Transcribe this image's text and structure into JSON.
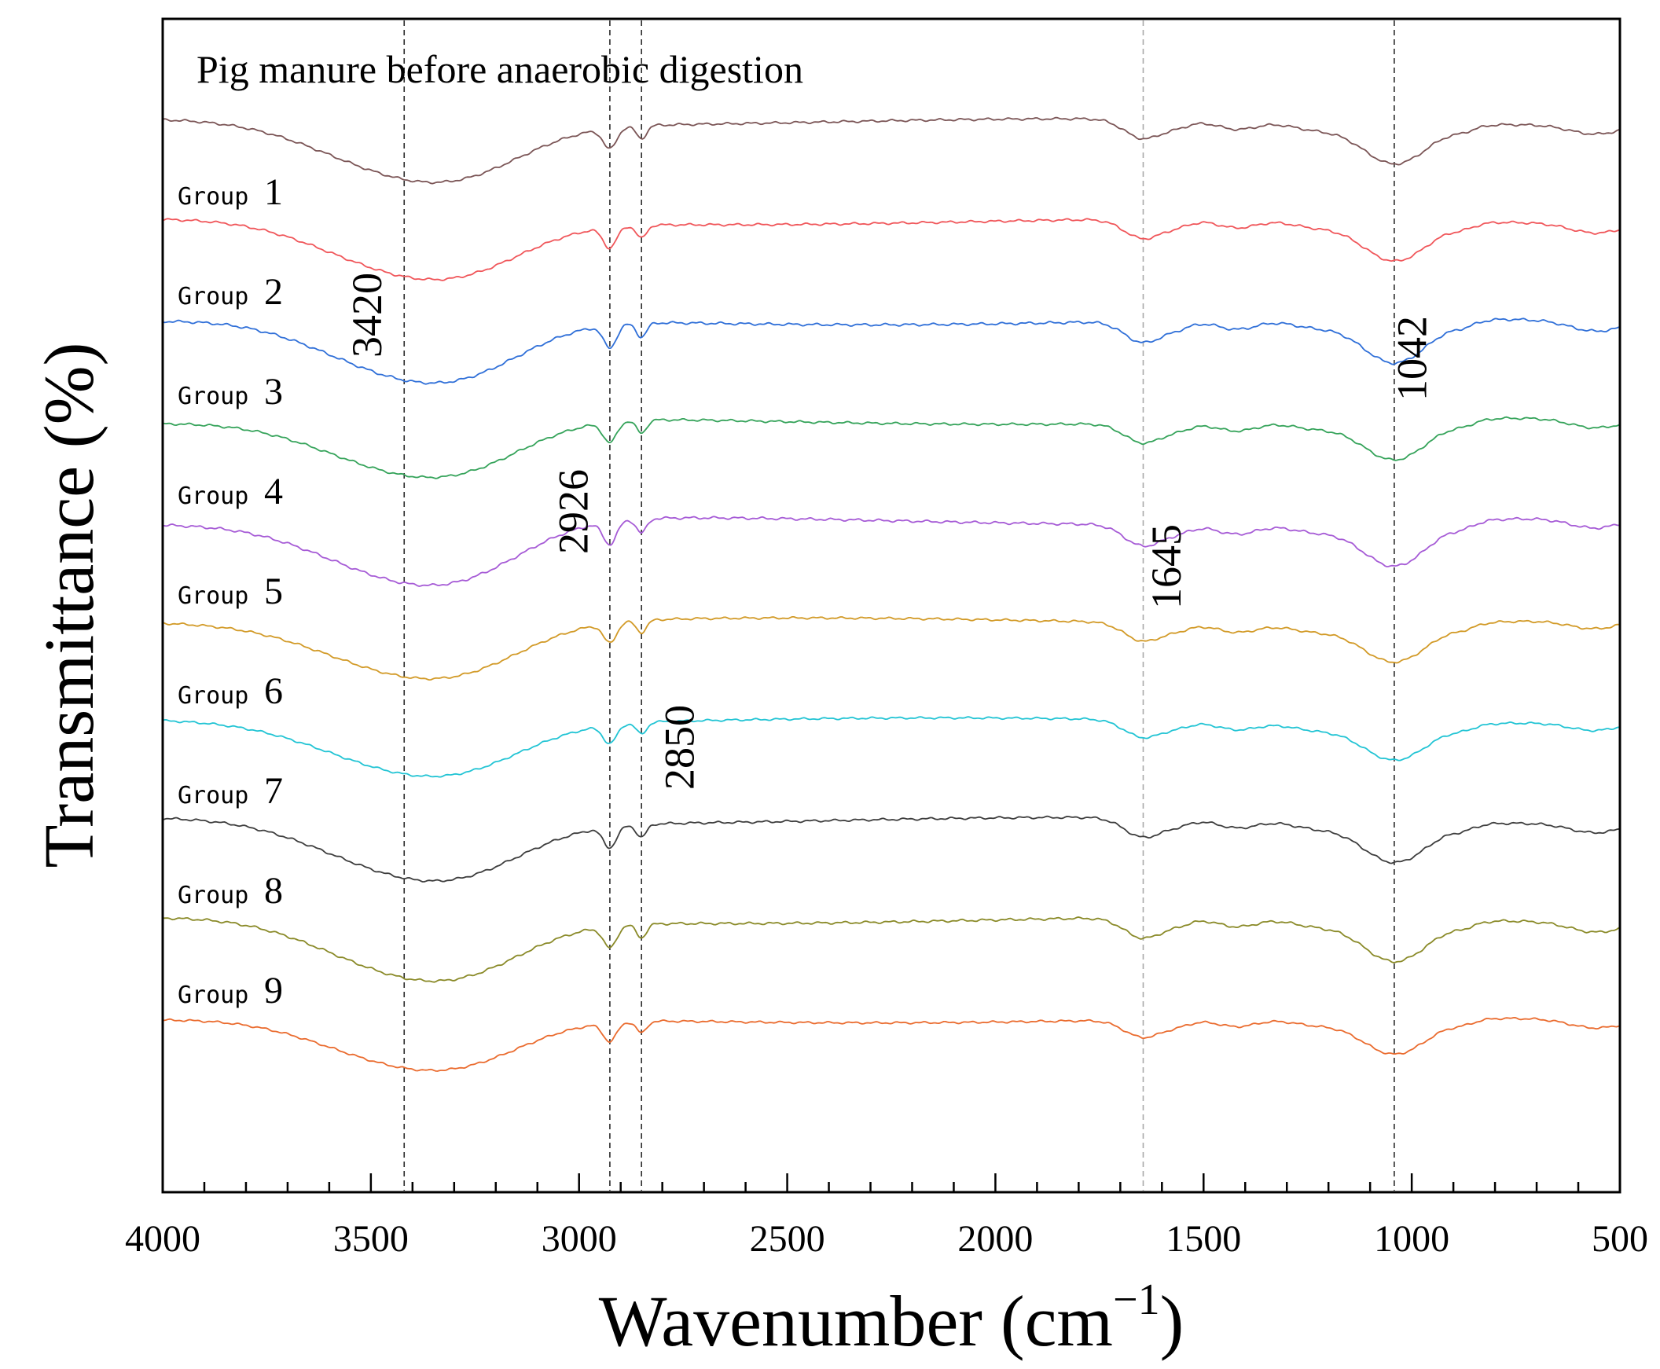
{
  "chart_data": {
    "type": "line",
    "title": "Pig manure before anaerobic digestion",
    "xlabel_main": "Wavenumber (cm",
    "xlabel_sup": "−1",
    "xlabel_close": ")",
    "ylabel": "Transmittance (%)",
    "xlim": [
      4000,
      500
    ],
    "x_reversed": true,
    "x_ticks": [
      4000,
      3500,
      3000,
      2500,
      2000,
      1500,
      1000,
      500
    ],
    "x_tick_labels": [
      "4000",
      "3500",
      "3000",
      "2500",
      "2000",
      "1500",
      "1000",
      "500"
    ],
    "x_minor_step": 100,
    "y_ticks_shown": false,
    "grid": false,
    "reference_lines": [
      {
        "x": 3420,
        "label": "3420",
        "dash": "dark"
      },
      {
        "x": 2926,
        "label": "2926",
        "dash": "dark"
      },
      {
        "x": 2850,
        "label": "2850",
        "dash": "dark"
      },
      {
        "x": 1645,
        "label": "1645",
        "dash": "light"
      },
      {
        "x": 1042,
        "label": "1042",
        "dash": "dark"
      }
    ],
    "series": [
      {
        "name": "Pig manure before anaerobic digestion",
        "label_word": "",
        "label_num": "",
        "color": "#7b5556",
        "baseline": 0.0,
        "depth": 1.0
      },
      {
        "name": "Group 1",
        "label_word": "Group",
        "label_num": "1",
        "color": "#f0565a",
        "baseline": 1.0,
        "depth": 1.0
      },
      {
        "name": "Group 2",
        "label_word": "Group",
        "label_num": "2",
        "color": "#2f6fd8",
        "baseline": 2.0,
        "depth": 1.1
      },
      {
        "name": "Group 3",
        "label_word": "Group",
        "label_num": "3",
        "color": "#35a35a",
        "baseline": 3.0,
        "depth": 1.0
      },
      {
        "name": "Group 4",
        "label_word": "Group",
        "label_num": "4",
        "color": "#a65bd6",
        "baseline": 4.0,
        "depth": 1.1
      },
      {
        "name": "Group 5",
        "label_word": "Group",
        "label_num": "5",
        "color": "#d29a27",
        "baseline": 5.0,
        "depth": 0.95
      },
      {
        "name": "Group 6",
        "label_word": "Group",
        "label_num": "6",
        "color": "#22c4d4",
        "baseline": 6.0,
        "depth": 0.9
      },
      {
        "name": "Group 7",
        "label_word": "Group",
        "label_num": "7",
        "color": "#3d3d3d",
        "baseline": 7.0,
        "depth": 1.0
      },
      {
        "name": "Group 8",
        "label_word": "Group",
        "label_num": "8",
        "color": "#8a8a28",
        "baseline": 8.0,
        "depth": 1.05
      },
      {
        "name": "Group 9",
        "label_word": "Group",
        "label_num": "9",
        "color": "#ea6b2e",
        "baseline": 9.0,
        "depth": 0.9
      }
    ]
  }
}
